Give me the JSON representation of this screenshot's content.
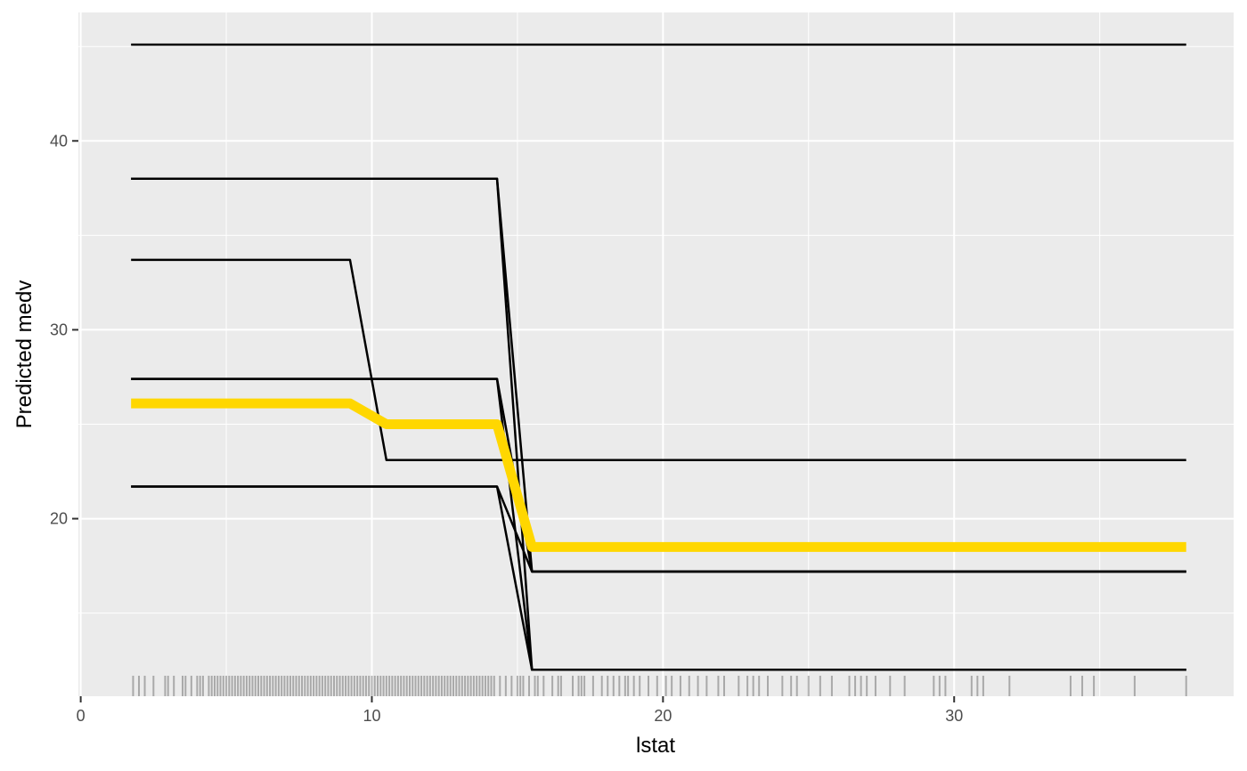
{
  "chart_data": {
    "type": "line",
    "title": "",
    "xlabel": "lstat",
    "ylabel": "Predicted medv",
    "xlim": [
      -0.08,
      39.6
    ],
    "ylim": [
      10.6,
      46.8
    ],
    "x_ticks": [
      0,
      10,
      20,
      30
    ],
    "y_ticks": [
      20,
      30,
      40
    ],
    "x_tick_labels": [
      "0",
      "10",
      "20",
      "30"
    ],
    "y_tick_labels": [
      "20",
      "30",
      "40"
    ],
    "grid": true,
    "panel_background": "#EBEBEB",
    "line_color": "#000000",
    "average_line_color": "#FFD700",
    "ice_curves": [
      {
        "x": [
          1.73,
          37.97
        ],
        "y": [
          45.1,
          45.1
        ]
      },
      {
        "x": [
          1.73,
          14.3,
          15.5,
          37.97
        ],
        "y": [
          38.0,
          38.0,
          17.2,
          17.2
        ]
      },
      {
        "x": [
          1.73,
          14.3,
          15.5,
          37.97
        ],
        "y": [
          38.0,
          38.0,
          12.0,
          12.0
        ]
      },
      {
        "x": [
          1.73,
          9.25,
          10.5,
          37.97
        ],
        "y": [
          33.7,
          33.7,
          23.1,
          23.1
        ]
      },
      {
        "x": [
          1.73,
          14.3,
          15.5,
          37.97
        ],
        "y": [
          27.4,
          27.4,
          17.2,
          17.2
        ]
      },
      {
        "x": [
          1.73,
          14.3,
          15.5,
          37.97
        ],
        "y": [
          27.4,
          27.4,
          12.0,
          12.0
        ]
      },
      {
        "x": [
          1.73,
          14.3,
          15.5,
          37.97
        ],
        "y": [
          21.7,
          21.7,
          17.2,
          17.2
        ]
      },
      {
        "x": [
          1.73,
          14.3,
          15.5,
          37.97
        ],
        "y": [
          21.7,
          21.7,
          12.0,
          12.0
        ]
      }
    ],
    "average_curve": {
      "x": [
        1.73,
        9.25,
        10.5,
        14.3,
        15.5,
        37.97
      ],
      "y": [
        26.1,
        26.1,
        25.0,
        25.0,
        18.5,
        18.5
      ]
    },
    "rug_x": [
      1.8,
      2.0,
      2.2,
      2.5,
      2.9,
      3.0,
      3.2,
      3.5,
      3.6,
      3.8,
      4.0,
      4.1,
      4.2,
      4.4,
      4.5,
      4.6,
      4.7,
      4.8,
      4.9,
      5.0,
      5.1,
      5.2,
      5.3,
      5.4,
      5.5,
      5.6,
      5.7,
      5.8,
      5.9,
      6.0,
      6.1,
      6.2,
      6.3,
      6.4,
      6.5,
      6.6,
      6.7,
      6.8,
      6.9,
      7.0,
      7.1,
      7.2,
      7.3,
      7.4,
      7.5,
      7.6,
      7.7,
      7.8,
      7.9,
      8.0,
      8.1,
      8.2,
      8.3,
      8.4,
      8.5,
      8.6,
      8.7,
      8.8,
      8.9,
      9.0,
      9.1,
      9.2,
      9.3,
      9.4,
      9.5,
      9.6,
      9.7,
      9.8,
      9.9,
      10.0,
      10.1,
      10.2,
      10.3,
      10.4,
      10.5,
      10.6,
      10.7,
      10.8,
      10.9,
      11.0,
      11.1,
      11.2,
      11.3,
      11.4,
      11.5,
      11.6,
      11.7,
      11.8,
      11.9,
      12.0,
      12.1,
      12.2,
      12.3,
      12.4,
      12.5,
      12.6,
      12.7,
      12.8,
      12.9,
      13.0,
      13.1,
      13.2,
      13.3,
      13.4,
      13.5,
      13.6,
      13.7,
      13.8,
      13.9,
      14.0,
      14.1,
      14.2,
      14.4,
      14.6,
      14.8,
      15.0,
      15.1,
      15.2,
      15.4,
      15.6,
      15.7,
      15.9,
      16.2,
      16.4,
      16.5,
      16.9,
      17.1,
      17.2,
      17.3,
      17.6,
      17.9,
      18.1,
      18.3,
      18.5,
      18.7,
      18.8,
      19.0,
      19.2,
      19.5,
      19.8,
      20.1,
      20.3,
      20.6,
      20.9,
      21.2,
      21.5,
      21.9,
      22.1,
      22.6,
      22.9,
      23.1,
      23.3,
      23.6,
      24.1,
      24.4,
      24.6,
      25.0,
      25.4,
      25.8,
      26.4,
      26.6,
      26.8,
      27.0,
      27.3,
      27.8,
      28.3,
      29.3,
      29.5,
      29.7,
      30.6,
      30.8,
      31.0,
      31.9,
      34.0,
      34.4,
      34.8,
      36.2,
      37.97
    ]
  }
}
